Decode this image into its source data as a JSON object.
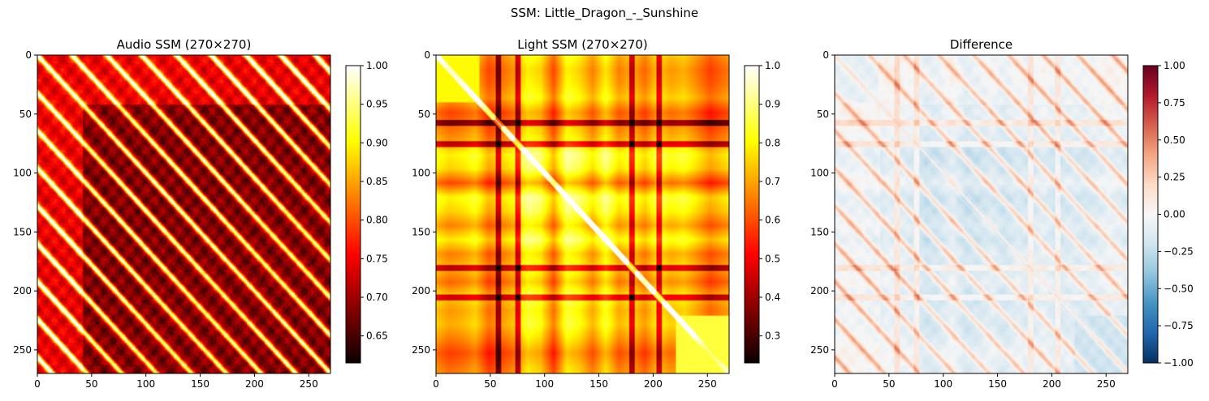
{
  "figure": {
    "suptitle": "SSM: Little_Dragon_-_Sunshine"
  },
  "chart_data": [
    {
      "type": "heatmap",
      "title": "Audio SSM (270×270)",
      "size": 270,
      "colormap": "hot",
      "xticks": [
        0,
        50,
        100,
        150,
        200,
        250
      ],
      "yticks": [
        0,
        50,
        100,
        150,
        200,
        250
      ],
      "xlim": [
        0,
        270
      ],
      "ylim": [
        270,
        0
      ],
      "colorbar": {
        "range": [
          0.615,
          1.0
        ],
        "ticks": [
          0.65,
          0.7,
          0.75,
          0.8,
          0.85,
          0.9,
          0.95,
          1.0
        ],
        "tick_labels": [
          "0.65",
          "0.70",
          "0.75",
          "0.80",
          "0.85",
          "0.90",
          "0.95",
          "1.00"
        ]
      },
      "diagonal_band_period": 32,
      "diagonal_band_offsets": [
        -224,
        -192,
        -160,
        -128,
        -96,
        -64,
        -32,
        32,
        64,
        96,
        128,
        160,
        192,
        224
      ]
    },
    {
      "type": "heatmap",
      "title": "Light SSM (270×270)",
      "size": 270,
      "colormap": "hot",
      "xticks": [
        0,
        50,
        100,
        150,
        200,
        250
      ],
      "yticks": [
        0,
        50,
        100,
        150,
        200,
        250
      ],
      "xlim": [
        0,
        270
      ],
      "ylim": [
        270,
        0
      ],
      "colorbar": {
        "range": [
          0.23,
          1.0
        ],
        "ticks": [
          0.3,
          0.4,
          0.5,
          0.6,
          0.7,
          0.8,
          0.9,
          1.0
        ],
        "tick_labels": [
          "0.3",
          "0.4",
          "0.5",
          "0.6",
          "0.7",
          "0.8",
          "0.9",
          "1.0"
        ]
      },
      "dark_lines_at": [
        57,
        75,
        180,
        205
      ]
    },
    {
      "type": "heatmap",
      "title": "Difference",
      "size": 270,
      "colormap": "RdBu_r",
      "xticks": [
        0,
        50,
        100,
        150,
        200,
        250
      ],
      "yticks": [
        0,
        50,
        100,
        150,
        200,
        250
      ],
      "xlim": [
        0,
        270
      ],
      "ylim": [
        270,
        0
      ],
      "colorbar": {
        "range": [
          -1.0,
          1.0
        ],
        "ticks": [
          -1.0,
          -0.75,
          -0.5,
          -0.25,
          0.0,
          0.25,
          0.5,
          0.75,
          1.0
        ],
        "tick_labels": [
          "−1.00",
          "−0.75",
          "−0.50",
          "−0.25",
          "0.00",
          "0.25",
          "0.50",
          "0.75",
          "1.00"
        ]
      }
    }
  ]
}
